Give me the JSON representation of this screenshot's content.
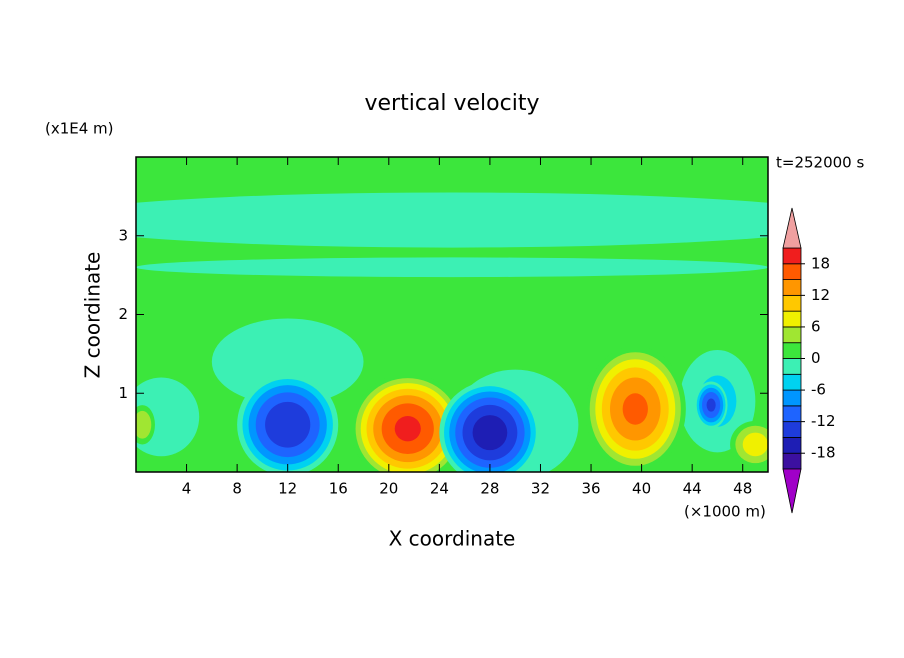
{
  "chart_data": {
    "type": "contour",
    "title": "vertical velocity",
    "y_unit": "(x1E4 m)",
    "x_unit": "(×1000 m)",
    "time_label": "t=252000 s",
    "xlabel": "X coordinate",
    "ylabel": "Z coordinate",
    "xlim": [
      0,
      50
    ],
    "ylim": [
      0,
      4
    ],
    "xticks": [
      4,
      8,
      12,
      16,
      20,
      24,
      28,
      32,
      36,
      40,
      44,
      48
    ],
    "yticks": [
      1,
      2,
      3
    ],
    "colorbar": {
      "levels": [
        -21,
        -18,
        -15,
        -12,
        -9,
        -6,
        -3,
        0,
        3,
        6,
        9,
        12,
        15,
        18,
        21
      ],
      "ticks": [
        -18,
        -12,
        -6,
        0,
        6,
        12,
        18
      ],
      "colors": [
        "#3c10a0",
        "#1e1eb4",
        "#1e3cdc",
        "#1e64ff",
        "#0096ff",
        "#00d2f0",
        "#3cf0b4",
        "#3ce63c",
        "#a0e632",
        "#f0f000",
        "#ffc800",
        "#ff9600",
        "#ff5a00",
        "#f01e1e"
      ],
      "extend_colors": [
        "#a000c8",
        "#f0a0a0"
      ]
    },
    "features": [
      {
        "x": 25,
        "z": 3.2,
        "width": 64,
        "height": 0.7,
        "value": -2
      },
      {
        "x": 25,
        "z": 2.6,
        "width": 50,
        "height": 0.25,
        "value": -2
      },
      {
        "x": 12,
        "z": 1.4,
        "width": 12,
        "height": 1.1,
        "value": -2
      },
      {
        "x": 2,
        "z": 0.7,
        "width": 6,
        "height": 1.0,
        "value": -2
      },
      {
        "x": 30,
        "z": 0.6,
        "width": 10,
        "height": 1.4,
        "value": -3
      },
      {
        "x": 46,
        "z": 0.9,
        "width": 6,
        "height": 1.3,
        "value": -4
      },
      {
        "x": 12,
        "z": 0.6,
        "width": 8,
        "height": 1.3,
        "value": -15
      },
      {
        "x": 21.5,
        "z": 0.55,
        "width": 9,
        "height": 1.4,
        "value": 19
      },
      {
        "x": 28,
        "z": 0.5,
        "width": 8,
        "height": 1.3,
        "value": -17
      },
      {
        "x": 39.5,
        "z": 0.8,
        "width": 8,
        "height": 1.6,
        "value": 16
      },
      {
        "x": 45.5,
        "z": 0.85,
        "width": 2.6,
        "height": 0.6,
        "value": -13
      },
      {
        "x": 49,
        "z": 0.35,
        "width": 4,
        "height": 0.6,
        "value": 8
      },
      {
        "x": 0.5,
        "z": 0.6,
        "width": 2,
        "height": 0.5,
        "value": 6
      }
    ]
  }
}
